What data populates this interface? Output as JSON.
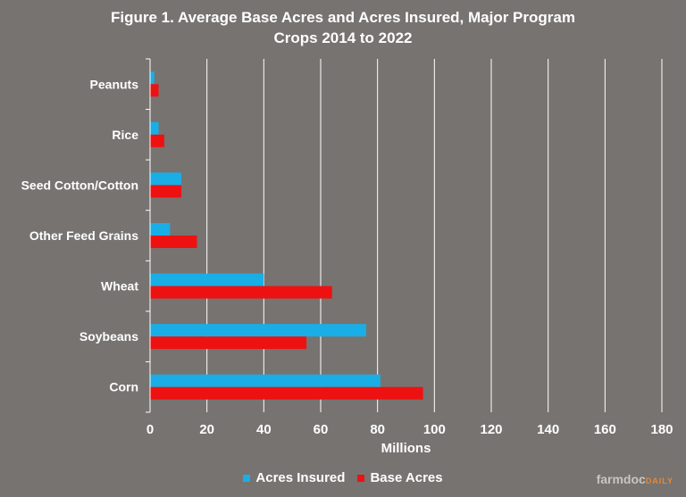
{
  "title_line1": "Figure  1. Average  Base  Acres  and  Acres  Insured,  Major  Program",
  "title_line2": "Crops  2014  to  2022",
  "brand_first": "farmdoc",
  "brand_second": "DAILY",
  "colors": {
    "background": "#777371",
    "acres_insured": "#1aaee6",
    "base_acres": "#ee1111",
    "gridline": "#ffffff"
  },
  "chart_data": {
    "type": "bar",
    "orientation": "horizontal",
    "categories": [
      "Peanuts",
      "Rice",
      "Seed Cotton/Cotton",
      "Other Feed Grains",
      "Wheat",
      "Soybeans",
      "Corn"
    ],
    "series": [
      {
        "name": "Acres Insured",
        "values": [
          1.5,
          3,
          11,
          7,
          40,
          76,
          81
        ]
      },
      {
        "name": "Base Acres",
        "values": [
          3,
          5,
          11,
          16.5,
          64,
          55,
          96
        ]
      }
    ],
    "xlabel": "Millions",
    "xlim": [
      0,
      180
    ],
    "xticks": [
      0,
      20,
      40,
      60,
      80,
      100,
      120,
      140,
      160,
      180
    ],
    "grid": "vertical",
    "legend": "bottom"
  }
}
